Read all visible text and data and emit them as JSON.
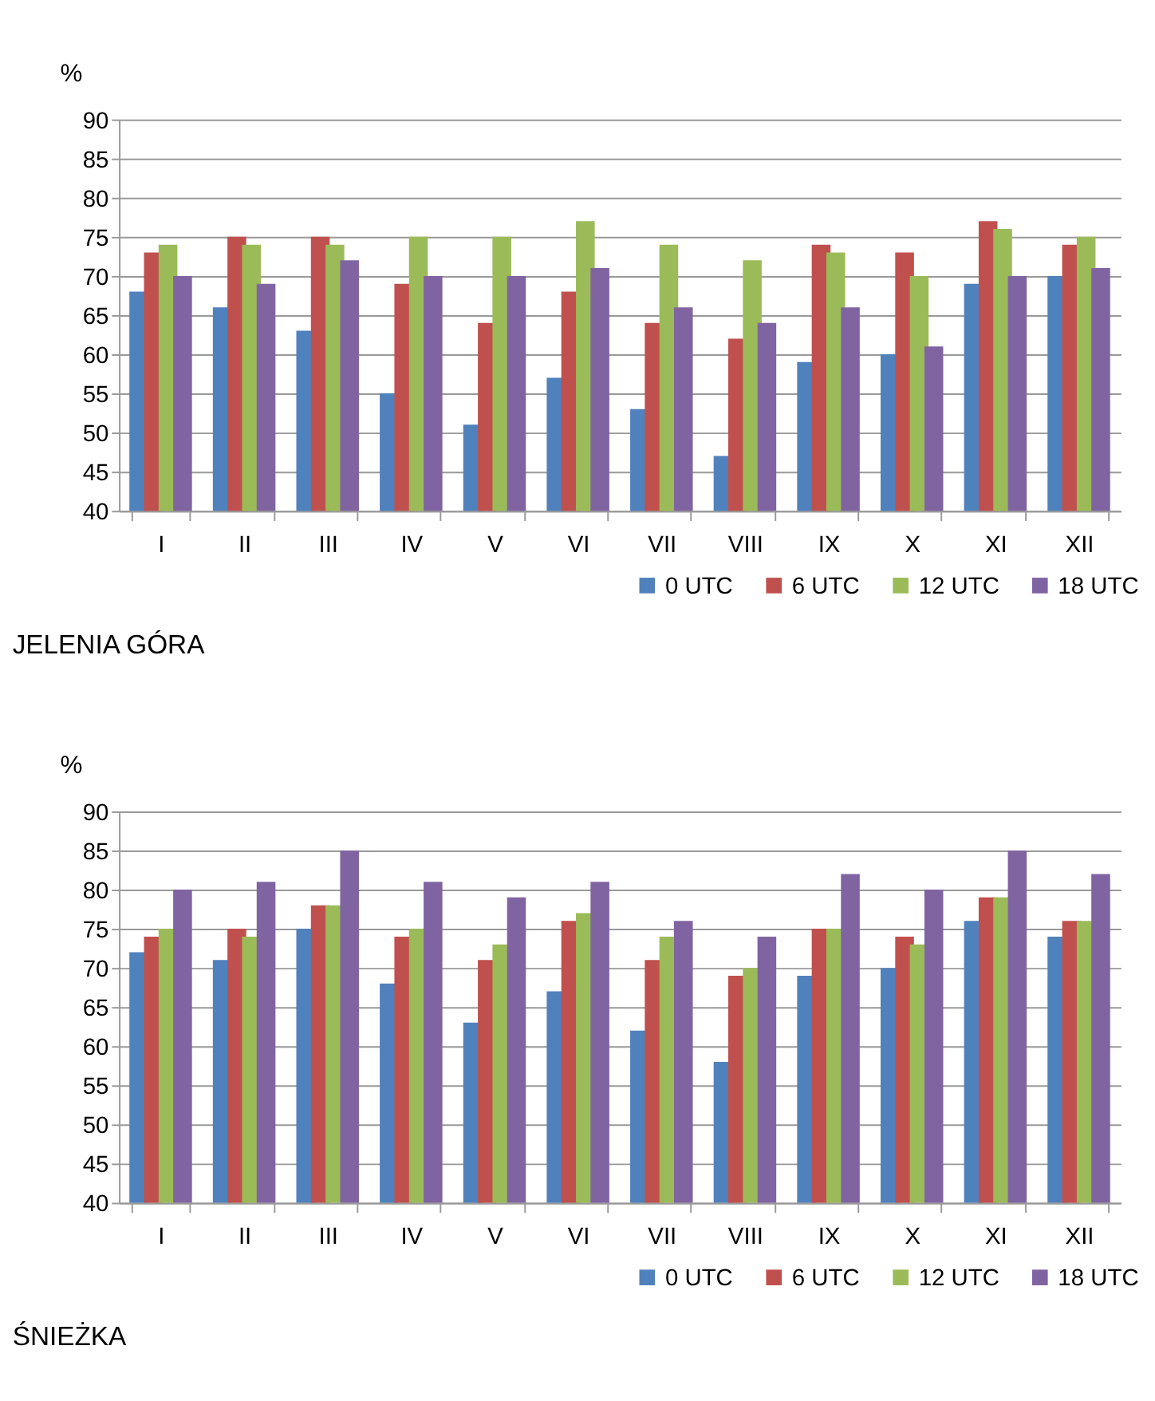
{
  "chart_data": [
    {
      "type": "bar",
      "title": "JELENIA GÓRA",
      "ylabel": "%",
      "categories": [
        "I",
        "II",
        "III",
        "IV",
        "V",
        "VI",
        "VII",
        "VIII",
        "IX",
        "X",
        "XI",
        "XII"
      ],
      "ylim": [
        40,
        90
      ],
      "yticks": [
        40,
        45,
        50,
        55,
        60,
        65,
        70,
        75,
        80,
        85,
        90
      ],
      "grid": "y",
      "legend": "bottom right",
      "series": [
        {
          "name": "0 UTC",
          "color": "#4f81bd",
          "values": [
            68,
            66,
            63,
            55,
            51,
            57,
            53,
            47,
            59,
            60,
            69,
            70
          ]
        },
        {
          "name": "6 UTC",
          "color": "#c0504d",
          "values": [
            73,
            75,
            75,
            69,
            64,
            68,
            64,
            62,
            74,
            73,
            77,
            74
          ]
        },
        {
          "name": "12 UTC",
          "color": "#9bbb59",
          "values": [
            74,
            74,
            74,
            75,
            75,
            77,
            74,
            72,
            73,
            70,
            76,
            75
          ]
        },
        {
          "name": "18 UTC",
          "color": "#8064a2",
          "values": [
            70,
            69,
            72,
            70,
            70,
            71,
            66,
            64,
            66,
            61,
            70,
            71
          ]
        }
      ]
    },
    {
      "type": "bar",
      "title": "ŚNIEŻKA",
      "ylabel": "%",
      "categories": [
        "I",
        "II",
        "III",
        "IV",
        "V",
        "VI",
        "VII",
        "VIII",
        "IX",
        "X",
        "XI",
        "XII"
      ],
      "ylim": [
        40,
        90
      ],
      "yticks": [
        40,
        45,
        50,
        55,
        60,
        65,
        70,
        75,
        80,
        85,
        90
      ],
      "grid": "y",
      "legend": "bottom right",
      "series": [
        {
          "name": "0 UTC",
          "color": "#4f81bd",
          "values": [
            72,
            71,
            75,
            68,
            63,
            67,
            62,
            58,
            69,
            70,
            76,
            74
          ]
        },
        {
          "name": "6 UTC",
          "color": "#c0504d",
          "values": [
            74,
            75,
            78,
            74,
            71,
            76,
            71,
            69,
            75,
            74,
            79,
            76
          ]
        },
        {
          "name": "12 UTC",
          "color": "#9bbb59",
          "values": [
            75,
            74,
            78,
            75,
            73,
            77,
            74,
            70,
            75,
            73,
            79,
            76
          ]
        },
        {
          "name": "18 UTC",
          "color": "#8064a2",
          "values": [
            80,
            81,
            85,
            81,
            79,
            81,
            76,
            74,
            82,
            80,
            85,
            82
          ]
        }
      ]
    }
  ]
}
